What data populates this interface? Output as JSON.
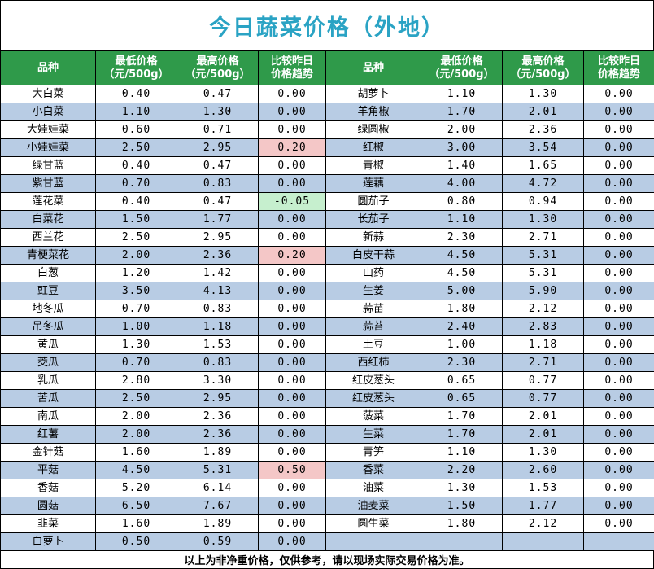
{
  "title": "今日蔬菜价格（外地）",
  "headers": {
    "name": "品种",
    "low_l1": "最低价格",
    "low_l2": "（元/500g）",
    "high_l1": "最高价格",
    "high_l2": "（元/500g）",
    "change_l1": "比较昨日",
    "change_l2": "价格趋势"
  },
  "left": [
    {
      "name": "大白菜",
      "low": "0.40",
      "high": "0.47",
      "change": "0.00"
    },
    {
      "name": "小白菜",
      "low": "1.10",
      "high": "1.30",
      "change": "0.00"
    },
    {
      "name": "大娃娃菜",
      "low": "0.60",
      "high": "0.71",
      "change": "0.00"
    },
    {
      "name": "小娃娃菜",
      "low": "2.50",
      "high": "2.95",
      "change": "0.20",
      "trend": "up"
    },
    {
      "name": "绿甘蓝",
      "low": "0.40",
      "high": "0.47",
      "change": "0.00"
    },
    {
      "name": "紫甘蓝",
      "low": "0.70",
      "high": "0.83",
      "change": "0.00"
    },
    {
      "name": "莲花菜",
      "low": "0.40",
      "high": "0.47",
      "change": "-0.05",
      "trend": "down"
    },
    {
      "name": "白菜花",
      "low": "1.50",
      "high": "1.77",
      "change": "0.00"
    },
    {
      "name": "西兰花",
      "low": "2.50",
      "high": "2.95",
      "change": "0.00"
    },
    {
      "name": "青梗菜花",
      "low": "2.00",
      "high": "2.36",
      "change": "0.20",
      "trend": "up"
    },
    {
      "name": "白葱",
      "low": "1.20",
      "high": "1.42",
      "change": "0.00"
    },
    {
      "name": "豇豆",
      "low": "3.50",
      "high": "4.13",
      "change": "0.00"
    },
    {
      "name": "地冬瓜",
      "low": "0.70",
      "high": "0.83",
      "change": "0.00"
    },
    {
      "name": "吊冬瓜",
      "low": "1.00",
      "high": "1.18",
      "change": "0.00"
    },
    {
      "name": "黄瓜",
      "low": "1.30",
      "high": "1.53",
      "change": "0.00"
    },
    {
      "name": "茭瓜",
      "low": "0.70",
      "high": "0.83",
      "change": "0.00"
    },
    {
      "name": "乳瓜",
      "low": "2.80",
      "high": "3.30",
      "change": "0.00"
    },
    {
      "name": "苦瓜",
      "low": "2.50",
      "high": "2.95",
      "change": "0.00"
    },
    {
      "name": "南瓜",
      "low": "2.00",
      "high": "2.36",
      "change": "0.00"
    },
    {
      "name": "红薯",
      "low": "2.00",
      "high": "2.36",
      "change": "0.00"
    },
    {
      "name": "金针菇",
      "low": "1.60",
      "high": "1.89",
      "change": "0.00"
    },
    {
      "name": "平菇",
      "low": "4.50",
      "high": "5.31",
      "change": "0.50",
      "trend": "up"
    },
    {
      "name": "香菇",
      "low": "5.20",
      "high": "6.14",
      "change": "0.00"
    },
    {
      "name": "圆菇",
      "low": "6.50",
      "high": "7.67",
      "change": "0.00"
    },
    {
      "name": "韭菜",
      "low": "1.60",
      "high": "1.89",
      "change": "0.00"
    },
    {
      "name": "白萝卜",
      "low": "0.50",
      "high": "0.59",
      "change": "0.00"
    }
  ],
  "right": [
    {
      "name": "胡萝卜",
      "low": "1.10",
      "high": "1.30",
      "change": "0.00"
    },
    {
      "name": "羊角椒",
      "low": "1.70",
      "high": "2.01",
      "change": "0.00"
    },
    {
      "name": "绿圆椒",
      "low": "2.00",
      "high": "2.36",
      "change": "0.00"
    },
    {
      "name": "红椒",
      "low": "3.00",
      "high": "3.54",
      "change": "0.00"
    },
    {
      "name": "青椒",
      "low": "1.40",
      "high": "1.65",
      "change": "0.00"
    },
    {
      "name": "莲藕",
      "low": "4.00",
      "high": "4.72",
      "change": "0.00"
    },
    {
      "name": "圆茄子",
      "low": "0.80",
      "high": "0.94",
      "change": "0.00"
    },
    {
      "name": "长茄子",
      "low": "1.10",
      "high": "1.30",
      "change": "0.00"
    },
    {
      "name": "新蒜",
      "low": "2.30",
      "high": "2.71",
      "change": "0.00"
    },
    {
      "name": "白皮干蒜",
      "low": "4.50",
      "high": "5.31",
      "change": "0.00"
    },
    {
      "name": "山药",
      "low": "4.50",
      "high": "5.31",
      "change": "0.00"
    },
    {
      "name": "生姜",
      "low": "5.00",
      "high": "5.90",
      "change": "0.00"
    },
    {
      "name": "蒜苗",
      "low": "1.80",
      "high": "2.12",
      "change": "0.00"
    },
    {
      "name": "蒜苔",
      "low": "2.40",
      "high": "2.83",
      "change": "0.00"
    },
    {
      "name": "土豆",
      "low": "1.00",
      "high": "1.18",
      "change": "0.00"
    },
    {
      "name": "西红柿",
      "low": "2.30",
      "high": "2.71",
      "change": "0.00"
    },
    {
      "name": "红皮葱头",
      "low": "0.65",
      "high": "0.77",
      "change": "0.00"
    },
    {
      "name": "红皮葱头",
      "low": "0.65",
      "high": "0.77",
      "change": "0.00"
    },
    {
      "name": "菠菜",
      "low": "1.70",
      "high": "2.01",
      "change": "0.00"
    },
    {
      "name": "生菜",
      "low": "1.70",
      "high": "2.01",
      "change": "0.00"
    },
    {
      "name": "青笋",
      "low": "1.10",
      "high": "1.30",
      "change": "0.00"
    },
    {
      "name": "香菜",
      "low": "2.20",
      "high": "2.60",
      "change": "0.00"
    },
    {
      "name": "油菜",
      "low": "1.30",
      "high": "1.53",
      "change": "0.00"
    },
    {
      "name": "油麦菜",
      "low": "1.50",
      "high": "1.77",
      "change": "0.00"
    },
    {
      "name": "圆生菜",
      "low": "1.80",
      "high": "2.12",
      "change": "0.00"
    },
    {
      "name": "",
      "low": "",
      "high": "",
      "change": ""
    }
  ],
  "footer": "以上为非净重价格，仅供参考，请以现场实际交易价格为准。"
}
